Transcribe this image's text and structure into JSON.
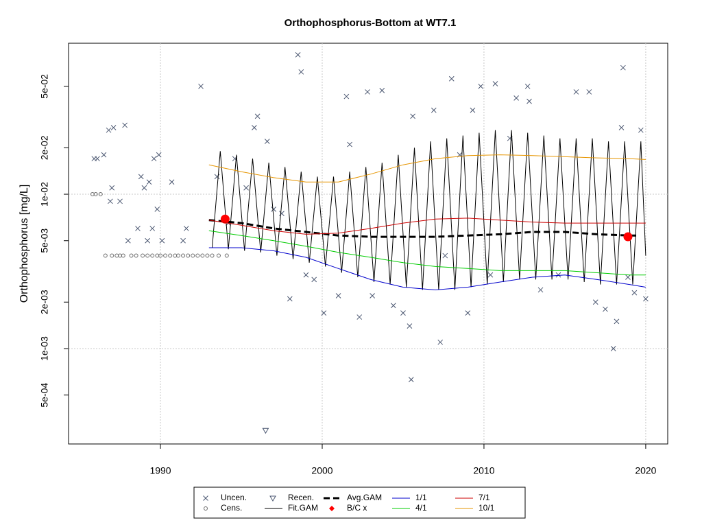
{
  "chart_data": {
    "type": "scatter",
    "title": "Orthophosphorus-Bottom at WT7.1",
    "y_label": "Orthophosphorus [mg/L]",
    "log_y": true,
    "grid": true,
    "xlim": [
      1984.32,
      2021.36
    ],
    "ylim": [
      0.000241,
      0.0951
    ],
    "xticks": [
      1990,
      2000,
      2010,
      2020
    ],
    "yticks": [
      {
        "value": 0.0005,
        "label": "5e-04"
      },
      {
        "value": 0.001,
        "label": "1e-03"
      },
      {
        "value": 0.002,
        "label": "2e-03"
      },
      {
        "value": 0.005,
        "label": "5e-03"
      },
      {
        "value": 0.01,
        "label": "1e-02"
      },
      {
        "value": 0.02,
        "label": "2e-02"
      },
      {
        "value": 0.05,
        "label": "5e-02"
      }
    ],
    "series": [
      {
        "name": "Uncen.",
        "marker": "x",
        "color": "#4a5670",
        "x": [
          1985.9,
          1986.1,
          1986.5,
          1986.8,
          1986.9,
          1987.0,
          1987.1,
          1987.5,
          1987.8,
          1988.0,
          1988.6,
          1988.8,
          1989.0,
          1989.2,
          1989.3,
          1989.5,
          1989.6,
          1989.8,
          1989.9,
          1990.1,
          1990.7,
          1991.4,
          1991.6,
          1992.5,
          1993.5,
          1994.2,
          1994.6,
          1995.3,
          1995.8,
          1996.0,
          1996.6,
          1997.0,
          1997.5,
          1998.0,
          1998.5,
          1998.7,
          1999.0,
          1999.5,
          2000.1,
          2001.0,
          2001.5,
          2001.7,
          2002.3,
          2002.8,
          2003.1,
          2003.7,
          2004.4,
          2005.0,
          2005.4,
          2005.5,
          2005.6,
          2006.9,
          2007.3,
          2007.6,
          2008.0,
          2008.5,
          2009.0,
          2009.3,
          2009.8,
          2010.4,
          2010.7,
          2011.6,
          2012.0,
          2012.7,
          2012.8,
          2013.5,
          2014.6,
          2015.7,
          2016.5,
          2016.9,
          2017.5,
          2018.0,
          2018.2,
          2018.5,
          2018.6,
          2018.9,
          2019.3,
          2019.7,
          2020.0
        ],
        "values": [
          0.017,
          0.017,
          0.018,
          0.026,
          0.009,
          0.011,
          0.027,
          0.009,
          0.028,
          0.005,
          0.006,
          0.013,
          0.011,
          0.005,
          0.012,
          0.006,
          0.017,
          0.008,
          0.018,
          0.005,
          0.012,
          0.005,
          0.006,
          0.05,
          0.013,
          0.0065,
          0.017,
          0.011,
          0.027,
          0.032,
          0.022,
          0.008,
          0.0075,
          0.0021,
          0.08,
          0.062,
          0.003,
          0.0028,
          0.0017,
          0.0022,
          0.043,
          0.021,
          0.0016,
          0.046,
          0.0022,
          0.047,
          0.0019,
          0.0017,
          0.0014,
          0.00063,
          0.032,
          0.035,
          0.0011,
          0.004,
          0.056,
          0.018,
          0.0017,
          0.035,
          0.05,
          0.003,
          0.052,
          0.023,
          0.042,
          0.05,
          0.04,
          0.0024,
          0.003,
          0.046,
          0.046,
          0.002,
          0.0018,
          0.001,
          0.0015,
          0.027,
          0.066,
          0.0029,
          0.0023,
          0.026,
          0.0021
        ]
      },
      {
        "name": "Cens.",
        "marker": "circle",
        "color": "#6b6b6b",
        "x": [
          1985.8,
          1986.0,
          1986.3,
          1986.6,
          1987.0,
          1987.3,
          1987.5,
          1987.7,
          1988.2,
          1988.5,
          1988.9,
          1989.2,
          1989.5,
          1989.8,
          1990.0,
          1990.3,
          1990.6,
          1990.9,
          1991.1,
          1991.4,
          1991.7,
          1992.0,
          1992.3,
          1992.6,
          1992.9,
          1993.2,
          1993.6,
          1994.1
        ],
        "values": [
          0.01,
          0.01,
          0.01,
          0.004,
          0.004,
          0.004,
          0.004,
          0.004,
          0.004,
          0.004,
          0.004,
          0.004,
          0.004,
          0.004,
          0.004,
          0.004,
          0.004,
          0.004,
          0.004,
          0.004,
          0.004,
          0.004,
          0.004,
          0.004,
          0.004,
          0.004,
          0.004,
          0.004
        ]
      },
      {
        "name": "Recen.",
        "marker": "triangle",
        "color": "#4a5670",
        "x": [
          1996.5
        ],
        "values": [
          0.000295
        ]
      },
      {
        "name": "Fit.GAM",
        "line": "solid",
        "color": "#000000",
        "x": [
          1993.2,
          1993.7,
          1994.2,
          1994.7,
          1995.2,
          1995.7,
          1996.2,
          1996.7,
          1997.2,
          1997.7,
          1998.2,
          1998.7,
          1999.2,
          1999.7,
          2000.2,
          2000.7,
          2001.2,
          2001.7,
          2002.2,
          2002.7,
          2003.2,
          2003.7,
          2004.2,
          2004.7,
          2005.2,
          2005.7,
          2006.2,
          2006.7,
          2007.2,
          2007.7,
          2008.2,
          2008.7,
          2009.2,
          2009.7,
          2010.2,
          2010.7,
          2011.2,
          2011.7,
          2012.2,
          2012.7,
          2013.2,
          2013.7,
          2014.2,
          2014.7,
          2015.2,
          2015.7,
          2016.2,
          2016.7,
          2017.2,
          2017.7,
          2018.2,
          2018.7,
          2019.2,
          2019.7,
          2020.0
        ],
        "values": [
          0.0045,
          0.019,
          0.0044,
          0.018,
          0.0043,
          0.017,
          0.0042,
          0.016,
          0.004,
          0.015,
          0.0038,
          0.014,
          0.0036,
          0.013,
          0.0034,
          0.013,
          0.0031,
          0.014,
          0.0029,
          0.015,
          0.0027,
          0.016,
          0.0026,
          0.018,
          0.0025,
          0.02,
          0.0024,
          0.022,
          0.0024,
          0.023,
          0.0024,
          0.024,
          0.0025,
          0.025,
          0.0026,
          0.026,
          0.0027,
          0.026,
          0.0028,
          0.025,
          0.0028,
          0.024,
          0.0028,
          0.023,
          0.0028,
          0.023,
          0.0027,
          0.023,
          0.0026,
          0.022,
          0.0026,
          0.022,
          0.0026,
          0.022,
          0.004
        ]
      },
      {
        "name": "Avg.GAM",
        "line": "dash",
        "color": "#000000",
        "x": [
          1993,
          1995,
          1997,
          1999,
          2001,
          2003,
          2005,
          2007,
          2009,
          2011,
          2013,
          2015,
          2017,
          2019,
          2019.5
        ],
        "values": [
          0.0068,
          0.0065,
          0.006,
          0.0057,
          0.0054,
          0.0053,
          0.0053,
          0.0053,
          0.0054,
          0.0055,
          0.0057,
          0.0057,
          0.0055,
          0.0054,
          0.0054
        ]
      },
      {
        "name": "B/C x",
        "marker": "dot",
        "color": "#ff0000",
        "x": [
          1994,
          2018.9
        ],
        "values": [
          0.0069,
          0.0053
        ]
      },
      {
        "name": "1/1",
        "line": "solid",
        "color": "#0000cc",
        "x": [
          1993,
          1995,
          1997,
          1999,
          2001,
          2003,
          2005,
          2007,
          2009,
          2011,
          2013,
          2015,
          2017,
          2019,
          2020
        ],
        "values": [
          0.0045,
          0.0045,
          0.0043,
          0.0039,
          0.0033,
          0.0028,
          0.0025,
          0.0024,
          0.0025,
          0.0027,
          0.0029,
          0.003,
          0.0028,
          0.0026,
          0.0025
        ]
      },
      {
        "name": "4/1",
        "line": "solid",
        "color": "#00cc00",
        "x": [
          1993,
          1995,
          1997,
          1999,
          2001,
          2003,
          2005,
          2007,
          2009,
          2011,
          2013,
          2015,
          2017,
          2019,
          2020
        ],
        "values": [
          0.0058,
          0.0054,
          0.005,
          0.0046,
          0.0042,
          0.0039,
          0.0036,
          0.0034,
          0.0033,
          0.0032,
          0.0032,
          0.0032,
          0.0031,
          0.003,
          0.003
        ]
      },
      {
        "name": "7/1",
        "line": "solid",
        "color": "#cc0000",
        "x": [
          1993,
          1995,
          1997,
          1999,
          2001,
          2003,
          2005,
          2007,
          2009,
          2011,
          2013,
          2015,
          2017,
          2019,
          2020
        ],
        "values": [
          0.0068,
          0.0063,
          0.0058,
          0.0055,
          0.0056,
          0.006,
          0.0065,
          0.0069,
          0.007,
          0.0068,
          0.0066,
          0.0065,
          0.0065,
          0.0065,
          0.0065
        ]
      },
      {
        "name": "10/1",
        "line": "solid",
        "color": "#e69500",
        "x": [
          1993,
          1995,
          1997,
          1999,
          2001,
          2003,
          2005,
          2007,
          2009,
          2011,
          2013,
          2015,
          2017,
          2019,
          2020
        ],
        "values": [
          0.0155,
          0.014,
          0.0128,
          0.012,
          0.012,
          0.0135,
          0.0155,
          0.017,
          0.0178,
          0.018,
          0.0178,
          0.0175,
          0.0172,
          0.017,
          0.0168
        ]
      }
    ]
  }
}
